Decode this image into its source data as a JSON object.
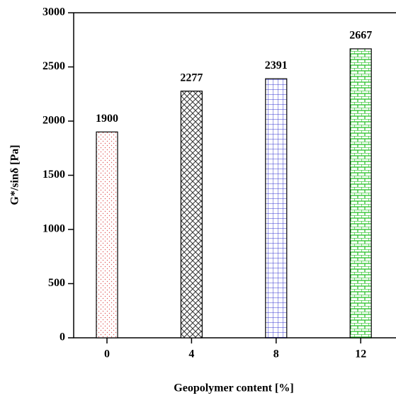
{
  "chart_data": {
    "type": "bar",
    "xlabel": "Geopolymer content [%]",
    "ylabel": "G*/sinδ [Pa]",
    "categories": [
      "0",
      "4",
      "8",
      "12"
    ],
    "values": [
      1900,
      2277,
      2391,
      2667
    ],
    "colors": [
      "#e05a5a",
      "#333333",
      "#3a3ad0",
      "#1fbf1f"
    ],
    "ylim": [
      0,
      3000
    ],
    "yticks": [
      0,
      500,
      1000,
      1500,
      2000,
      2500,
      3000
    ],
    "value_labels_shown": true
  }
}
